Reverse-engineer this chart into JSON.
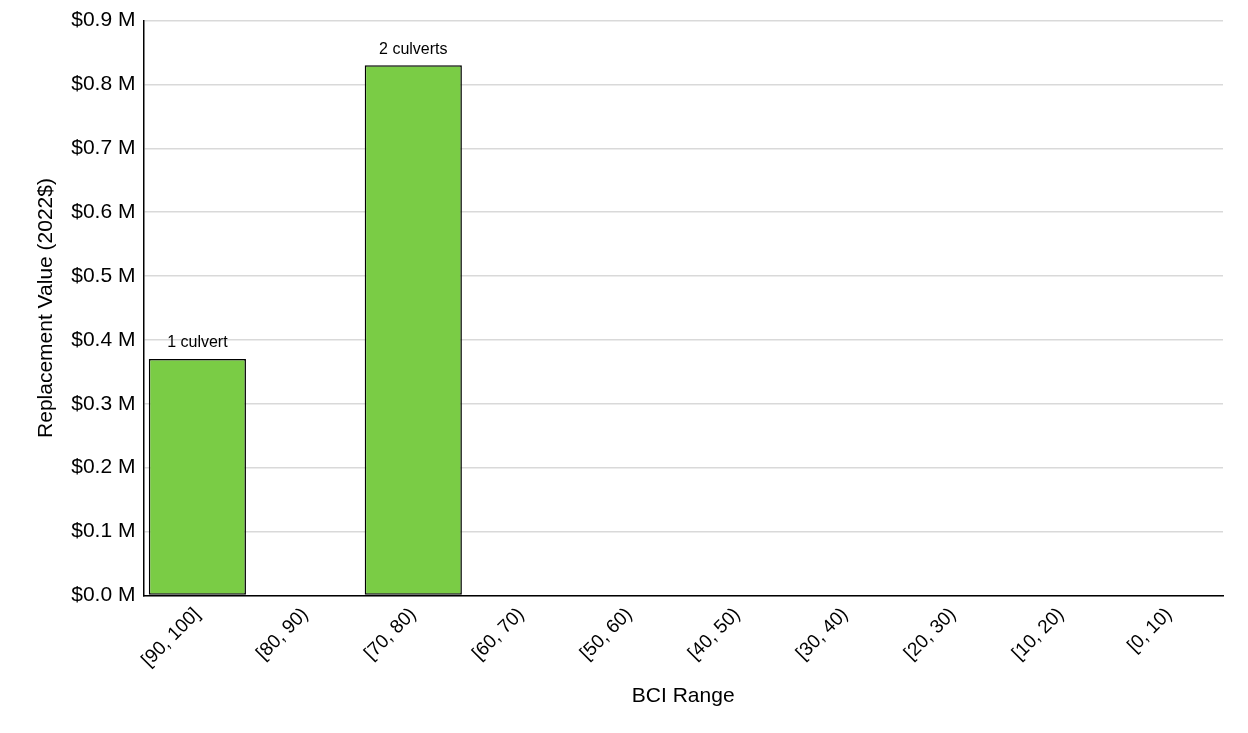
{
  "chart_data": {
    "type": "bar",
    "xlabel": "BCI Range",
    "ylabel": "Replacement Value (2022$)",
    "categories": [
      "[90, 100]",
      "[80, 90)",
      "[70, 80)",
      "[60, 70)",
      "[50, 60)",
      "[40, 50)",
      "[30, 40)",
      "[20, 30)",
      "[10, 20)",
      "[0, 10)"
    ],
    "values": [
      0.37,
      null,
      0.83,
      null,
      null,
      null,
      null,
      null,
      null,
      null
    ],
    "annotations": [
      {
        "text": "1 culvert",
        "x": "[90, 100]",
        "y": 0.37
      },
      {
        "text": "2 culverts",
        "x": "[70, 80)",
        "y": 0.83
      }
    ],
    "color": "#7acc45",
    "ylim": [
      0,
      0.9
    ],
    "yticks": [
      {
        "value": 0,
        "label": "$0.0 M"
      },
      {
        "value": 0.1,
        "label": "$0.1 M"
      },
      {
        "value": 0.2,
        "label": "$0.2 M"
      },
      {
        "value": 0.3,
        "label": "$0.3 M"
      },
      {
        "value": 0.4,
        "label": "$0.4 M"
      },
      {
        "value": 0.5,
        "label": "$0.5 M"
      },
      {
        "value": 0.6,
        "label": "$0.6 M"
      },
      {
        "value": 0.7,
        "label": "$0.7 M"
      },
      {
        "value": 0.8,
        "label": "$0.8 M"
      },
      {
        "value": 0.9,
        "label": "$0.9 M"
      }
    ],
    "grid": "y",
    "legend": false
  }
}
